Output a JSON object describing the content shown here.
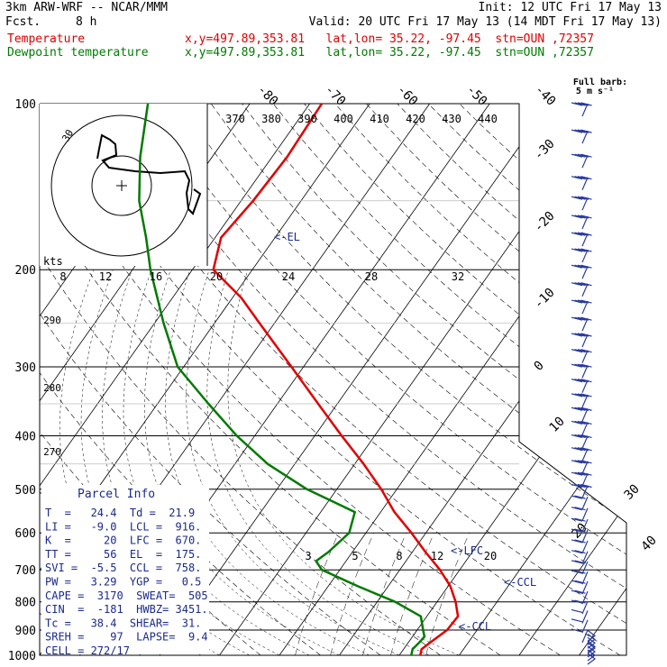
{
  "header": {
    "model": "3km ARW-WRF -- NCAR/MMM",
    "init": "Init: 12 UTC Fri 17 May 13",
    "fcst_label": "Fcst.",
    "fcst_value": "8 h",
    "valid": "Valid: 20 UTC Fri 17 May 13 (14 MDT Fri 17 May 13)",
    "temp_label": "Temperature",
    "dew_label": "Dewpoint temperature",
    "temp_info": "x,y=497.89,353.81   lat,lon= 35.22, -97.45  stn=OUN ,72357",
    "dew_info": "x,y=497.89,353.81   lat,lon= 35.22, -97.45  stn=OUN ,72357"
  },
  "colors": {
    "temperature": "#e00000",
    "dewpoint": "#007a00",
    "barb": "#2a3aa0",
    "annotation": "#1a2a8a"
  },
  "barb_legend": {
    "line1": "Full barb:",
    "line2": "5 m s⁻¹"
  },
  "hodograph": {
    "units": "kts",
    "ring_label": "30",
    "tick_labels": [
      "8",
      "12",
      "16",
      "20",
      "24",
      "28",
      "32"
    ]
  },
  "theta_e_labels": [
    "370",
    "380",
    "390",
    "400",
    "410",
    "420",
    "430",
    "440"
  ],
  "theta_labels_left": [
    "290",
    "280",
    "270"
  ],
  "mixing_ratio_labels": [
    "3",
    "5",
    "8",
    "12",
    "20"
  ],
  "temperature_isotherm_labels": [
    "-80",
    "-70",
    "-60",
    "-50",
    "-40",
    "-30",
    "-20",
    "-10",
    "0",
    "10",
    "20",
    "30",
    "40"
  ],
  "annotations": {
    "el": "<-EL",
    "lfc": "<-LFC",
    "ccl_right": "<-CCL",
    "ccl_low": "<-CCL"
  },
  "parcel_info": {
    "title": "Parcel Info",
    "rows": [
      "T  =   24.4  Td =  21.9",
      "LI =   -9.0  LCL =  916.",
      "K  =     20  LFC =  670.",
      "TT =     56  EL  =  175.",
      "SVI =  -5.5  CCL =  758.",
      "PW =   3.29  YGP =   0.5",
      "CAPE =  3170  SWEAT=  505",
      "CIN  =  -181  HWBZ= 3451.",
      "Tc =   38.4  SHEAR=  31.",
      "SREH =    97  LAPSE=  9.4",
      "CELL = 272/17"
    ]
  },
  "chart_data": {
    "type": "line",
    "title": "",
    "xlabel": "",
    "ylabel": "",
    "y_axis": {
      "scale": "log",
      "ticks": [
        100,
        200,
        300,
        400,
        500,
        600,
        700,
        800,
        900,
        1000
      ],
      "range": [
        100,
        1000
      ]
    },
    "skew_x_temperature_range": [
      -40,
      40
    ],
    "series": [
      {
        "name": "Temperature",
        "points": [
          [
            1000,
            23.5
          ],
          [
            975,
            23.0
          ],
          [
            950,
            23.6
          ],
          [
            925,
            24.3
          ],
          [
            900,
            25.0
          ],
          [
            850,
            25.2
          ],
          [
            800,
            23.1
          ],
          [
            750,
            20.4
          ],
          [
            700,
            16.7
          ],
          [
            650,
            12.2
          ],
          [
            600,
            7.6
          ],
          [
            550,
            2.3
          ],
          [
            500,
            -2.6
          ],
          [
            450,
            -8.5
          ],
          [
            400,
            -15.5
          ],
          [
            350,
            -23.2
          ],
          [
            300,
            -32.0
          ],
          [
            250,
            -42.5
          ],
          [
            225,
            -48.5
          ],
          [
            200,
            -56.5
          ],
          [
            175,
            -59.0
          ],
          [
            150,
            -58.0
          ],
          [
            125,
            -57.5
          ],
          [
            100,
            -58.0
          ]
        ]
      },
      {
        "name": "Dewpoint temperature",
        "points": [
          [
            1000,
            22.0
          ],
          [
            975,
            21.5
          ],
          [
            950,
            21.8
          ],
          [
            925,
            22.0
          ],
          [
            900,
            21.0
          ],
          [
            850,
            19.0
          ],
          [
            800,
            13.0
          ],
          [
            750,
            5.0
          ],
          [
            700,
            -3.0
          ],
          [
            675,
            -5.0
          ],
          [
            650,
            -4.0
          ],
          [
            600,
            -2.8
          ],
          [
            550,
            -4.3
          ],
          [
            500,
            -15.0
          ],
          [
            450,
            -24.5
          ],
          [
            400,
            -33.0
          ],
          [
            350,
            -41.5
          ],
          [
            300,
            -51.0
          ],
          [
            250,
            -58.5
          ],
          [
            200,
            -67.0
          ],
          [
            175,
            -71.5
          ],
          [
            150,
            -77.0
          ],
          [
            125,
            -82.0
          ],
          [
            100,
            -87.0
          ]
        ]
      }
    ],
    "wind_barb_pressures": [
      100,
      112,
      124,
      136,
      148,
      160,
      172,
      184,
      197,
      212,
      228,
      245,
      262,
      280,
      298,
      317,
      337,
      357,
      378,
      400,
      422,
      445,
      468,
      492,
      516,
      541,
      567,
      593,
      620,
      648,
      676,
      705,
      735,
      766,
      798,
      830,
      863,
      900,
      950,
      1000
    ]
  }
}
